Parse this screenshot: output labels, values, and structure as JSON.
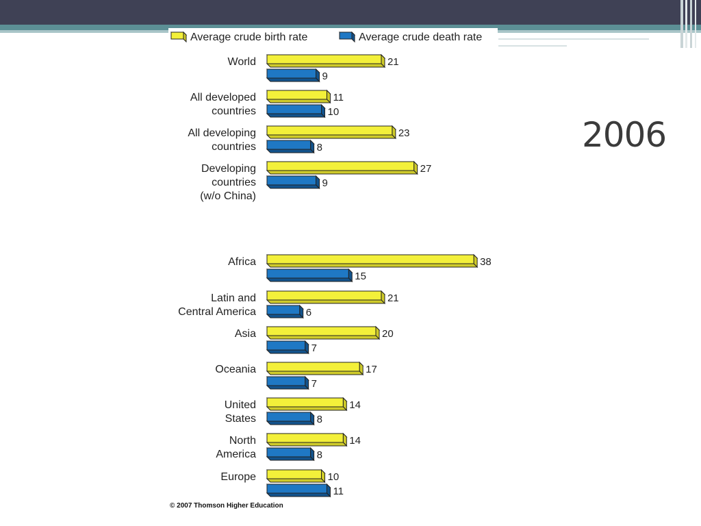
{
  "slide": {
    "title": "2006"
  },
  "colors": {
    "birth": "#f3f03a",
    "birth_side": "#cfcb2a",
    "birth_top": "#fbf98e",
    "death": "#1f78c4",
    "death_side": "#13538c",
    "death_top": "#5ea4dd",
    "header_dark": "#3f4155",
    "header_teal": "#5c8f95"
  },
  "chart_data": {
    "type": "bar",
    "orientation": "horizontal",
    "legend_position": "top",
    "series": [
      {
        "name": "Average crude birth rate",
        "values": [
          21,
          11,
          23,
          27,
          38,
          21,
          20,
          17,
          14,
          14,
          10
        ]
      },
      {
        "name": "Average crude death rate",
        "values": [
          9,
          10,
          8,
          9,
          15,
          6,
          7,
          7,
          8,
          8,
          11
        ]
      }
    ],
    "categories": [
      [
        "World"
      ],
      [
        "All developed",
        "countries"
      ],
      [
        "All developing",
        "countries"
      ],
      [
        "Developing",
        "countries",
        "(w/o China)"
      ],
      [
        "Africa"
      ],
      [
        "Latin and",
        "Central America"
      ],
      [
        "Asia"
      ],
      [
        "Oceania"
      ],
      [
        "United",
        "States"
      ],
      [
        "North",
        "America"
      ],
      [
        "Europe"
      ]
    ],
    "xlim": [
      0,
      40
    ],
    "grid": false,
    "source": "© 2007 Thomson Higher Education"
  }
}
